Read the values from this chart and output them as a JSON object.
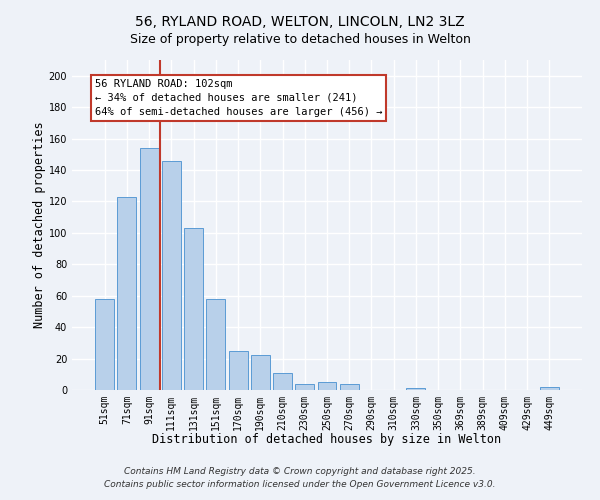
{
  "title": "56, RYLAND ROAD, WELTON, LINCOLN, LN2 3LZ",
  "subtitle": "Size of property relative to detached houses in Welton",
  "xlabel": "Distribution of detached houses by size in Welton",
  "ylabel": "Number of detached properties",
  "categories": [
    "51sqm",
    "71sqm",
    "91sqm",
    "111sqm",
    "131sqm",
    "151sqm",
    "170sqm",
    "190sqm",
    "210sqm",
    "230sqm",
    "250sqm",
    "270sqm",
    "290sqm",
    "310sqm",
    "330sqm",
    "350sqm",
    "369sqm",
    "389sqm",
    "409sqm",
    "429sqm",
    "449sqm"
  ],
  "values": [
    58,
    123,
    154,
    146,
    103,
    58,
    25,
    22,
    11,
    4,
    5,
    4,
    0,
    0,
    1,
    0,
    0,
    0,
    0,
    0,
    2
  ],
  "bar_color": "#b8d0ea",
  "bar_edge_color": "#5b9bd5",
  "ylim": [
    0,
    210
  ],
  "yticks": [
    0,
    20,
    40,
    60,
    80,
    100,
    120,
    140,
    160,
    180,
    200
  ],
  "vline_x": 2.5,
  "vline_color": "#c0392b",
  "annotation_line1": "56 RYLAND ROAD: 102sqm",
  "annotation_line2": "← 34% of detached houses are smaller (241)",
  "annotation_line3": "64% of semi-detached houses are larger (456) →",
  "footer1": "Contains HM Land Registry data © Crown copyright and database right 2025.",
  "footer2": "Contains public sector information licensed under the Open Government Licence v3.0.",
  "background_color": "#eef2f8",
  "grid_color": "#ffffff",
  "title_fontsize": 10,
  "subtitle_fontsize": 9,
  "axis_label_fontsize": 8.5,
  "tick_fontsize": 7,
  "annotation_fontsize": 7.5,
  "footer_fontsize": 6.5
}
